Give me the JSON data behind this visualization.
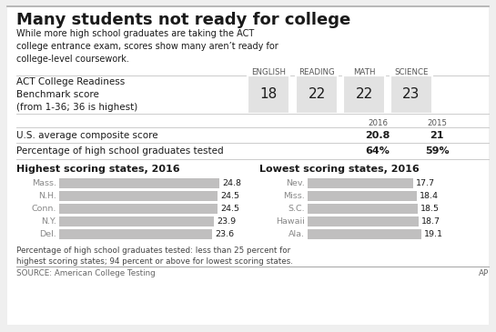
{
  "title": "Many students not ready for college",
  "subtitle": "While more high school graduates are taking the ACT\ncollege entrance exam, scores show many aren’t ready for\ncollege-level coursework.",
  "benchmark_headers": [
    "ENGLISH",
    "READING",
    "MATH",
    "SCIENCE"
  ],
  "benchmark_label": "ACT College Readiness\nBenchmark score\n(from 1-36; 36 is highest)",
  "benchmark_scores": [
    18,
    22,
    22,
    23
  ],
  "avg_label": "U.S. average composite score",
  "avg_2016": "20.8",
  "avg_2015": "21",
  "pct_label": "Percentage of high school graduates tested",
  "pct_2016": "64%",
  "pct_2015": "59%",
  "year_2016": "2016",
  "year_2015": "2015",
  "high_title": "Highest scoring states, 2016",
  "low_title": "Lowest scoring states, 2016",
  "high_states": [
    "Mass.",
    "N.H.",
    "Conn.",
    "N.Y.",
    "Del."
  ],
  "high_scores": [
    24.8,
    24.5,
    24.5,
    23.9,
    23.6
  ],
  "low_states": [
    "Nev.",
    "Miss.",
    "S.C.",
    "Hawaii",
    "Ala."
  ],
  "low_scores": [
    17.7,
    18.4,
    18.5,
    18.7,
    19.1
  ],
  "footnote": "Percentage of high school graduates tested: less than 25 percent for\nhighest scoring states; 94 percent or above for lowest scoring states.",
  "source": "SOURCE: American College Testing",
  "credit": "AP",
  "bg_color": "#efefef",
  "white_bg": "#ffffff",
  "bar_color": "#c0bfbf",
  "cell_bg": "#e2e2e2",
  "text_color": "#1a1a1a",
  "mid_text": "#555555",
  "light_text": "#888888"
}
